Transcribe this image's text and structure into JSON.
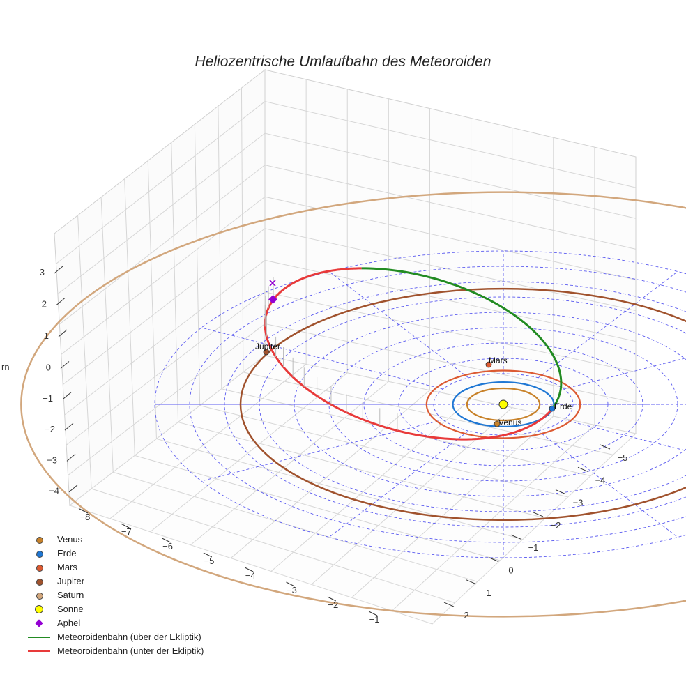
{
  "chart_data": {
    "type": "scatter",
    "title": "Heliozentrische Umlaufbahn des Meteoroiden",
    "zlabel": "rn",
    "x_ticks": [
      "−8",
      "−7",
      "−6",
      "−5",
      "−4",
      "−3",
      "−2",
      "−1"
    ],
    "y_ticks": [
      "−5",
      "−4",
      "−3",
      "−2",
      "−1",
      "0",
      "1",
      "2"
    ],
    "z_ticks": [
      "3",
      "2",
      "1",
      "0",
      "−1",
      "−2",
      "−3",
      "−4"
    ],
    "grid": true,
    "legend_position": "bottom-left",
    "planets": [
      {
        "name": "Venus",
        "orbit_radius_au": 0.72,
        "color": "#c8822a"
      },
      {
        "name": "Erde",
        "orbit_radius_au": 1.0,
        "color": "#1f77d4"
      },
      {
        "name": "Mars",
        "orbit_radius_au": 1.52,
        "color": "#dc5a32"
      },
      {
        "name": "Jupiter",
        "orbit_radius_au": 5.2,
        "color": "#a0522d"
      },
      {
        "name": "Saturn",
        "orbit_radius_au": 9.54,
        "color": "#d2a77d"
      }
    ],
    "sun": {
      "name": "Sonne",
      "color": "#ffff00"
    },
    "aphel": {
      "name": "Aphel",
      "color": "#9400d3"
    },
    "series": [
      {
        "name": "Meteoroidenbahn (über der Ekliptik)",
        "color": "#228b22"
      },
      {
        "name": "Meteoroidenbahn (unter der Ekliptik)",
        "color": "#e83a3a"
      }
    ],
    "point_labels": {
      "venus": "Venus",
      "erde": "Erde",
      "mars": "Mars",
      "jupiter": "Jupiter"
    }
  }
}
